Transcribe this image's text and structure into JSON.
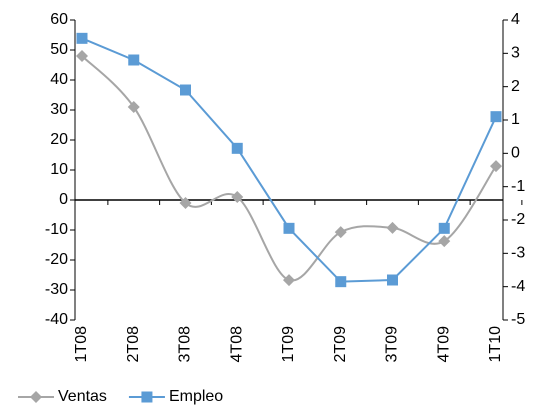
{
  "chart_data": {
    "type": "line",
    "categories": [
      "1T08",
      "2T08",
      "3T08",
      "4T08",
      "1T09",
      "2T09",
      "3T09",
      "4T09",
      "1T10"
    ],
    "series": [
      {
        "name": "Ventas",
        "color": "#a6a6a6",
        "marker": "diamond",
        "smooth": true,
        "values": [
          48,
          31,
          -1,
          1,
          -26.7,
          -10.7,
          -9.3,
          -13.7,
          11.3
        ]
      },
      {
        "name": "Empleo",
        "color": "#5b9bd5",
        "marker": "square",
        "axis": "y2",
        "values": [
          3.45,
          2.8,
          1.9,
          0.15,
          -2.25,
          -3.85,
          -3.8,
          -2.25,
          1.1
        ]
      }
    ],
    "ylim": [
      -40,
      60
    ],
    "yticks": [
      -40,
      -30,
      -20,
      -10,
      0,
      10,
      20,
      30,
      40,
      50,
      60
    ],
    "y2lim": [
      -5,
      4
    ],
    "y2ticks": [
      -5,
      -4,
      -3,
      -2,
      -1,
      0,
      1,
      2,
      3,
      4
    ],
    "legend": "bottom"
  }
}
